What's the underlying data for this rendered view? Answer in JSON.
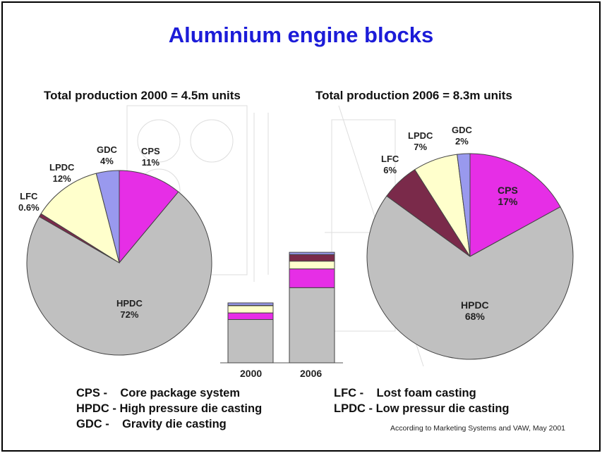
{
  "title": "Aluminium engine blocks",
  "subtitles": {
    "left": "Total production 2000 = 4.5m units",
    "right": "Total production 2006 = 8.3m units"
  },
  "chart_data": [
    {
      "type": "pie",
      "title": "Total production 2000 = 4.5m units",
      "labels": [
        "CPS",
        "HPDC",
        "LFC",
        "LPDC",
        "GDC"
      ],
      "values": [
        11,
        72,
        0.6,
        12,
        4
      ],
      "value_labels": [
        "11%",
        "72%",
        "0.6%",
        "12%",
        "4%"
      ],
      "colors": [
        "#e62ee6",
        "#c0c0c0",
        "#7a2a4a",
        "#ffffcc",
        "#9999ee"
      ]
    },
    {
      "type": "pie",
      "title": "Total production 2006 = 8.3m units",
      "labels": [
        "CPS",
        "HPDC",
        "LFC",
        "LPDC",
        "GDC"
      ],
      "values": [
        17,
        68,
        6,
        7,
        2
      ],
      "value_labels": [
        "17%",
        "68%",
        "6%",
        "7%",
        "2%"
      ],
      "colors": [
        "#e62ee6",
        "#c0c0c0",
        "#7a2a4a",
        "#ffffcc",
        "#9999ee"
      ]
    },
    {
      "type": "bar",
      "stacked": true,
      "categories": [
        "2000",
        "2006"
      ],
      "totals": [
        4.5,
        8.3
      ],
      "series_order": [
        "HPDC",
        "CPS",
        "LPDC",
        "LFC",
        "GDC"
      ],
      "units": "million units"
    }
  ],
  "legend": [
    {
      "abbr": "CPS -",
      "text": "Core package system"
    },
    {
      "abbr": "HPDC -",
      "text": "High pressure die casting"
    },
    {
      "abbr": "GDC -",
      "text": "Gravity die casting"
    },
    {
      "abbr": "LFC -",
      "text": "Lost foam casting"
    },
    {
      "abbr": "LPDC -",
      "text": "Low pressur die casting"
    }
  ],
  "source_note": "According to Marketing Systems and VAW, May 2001"
}
